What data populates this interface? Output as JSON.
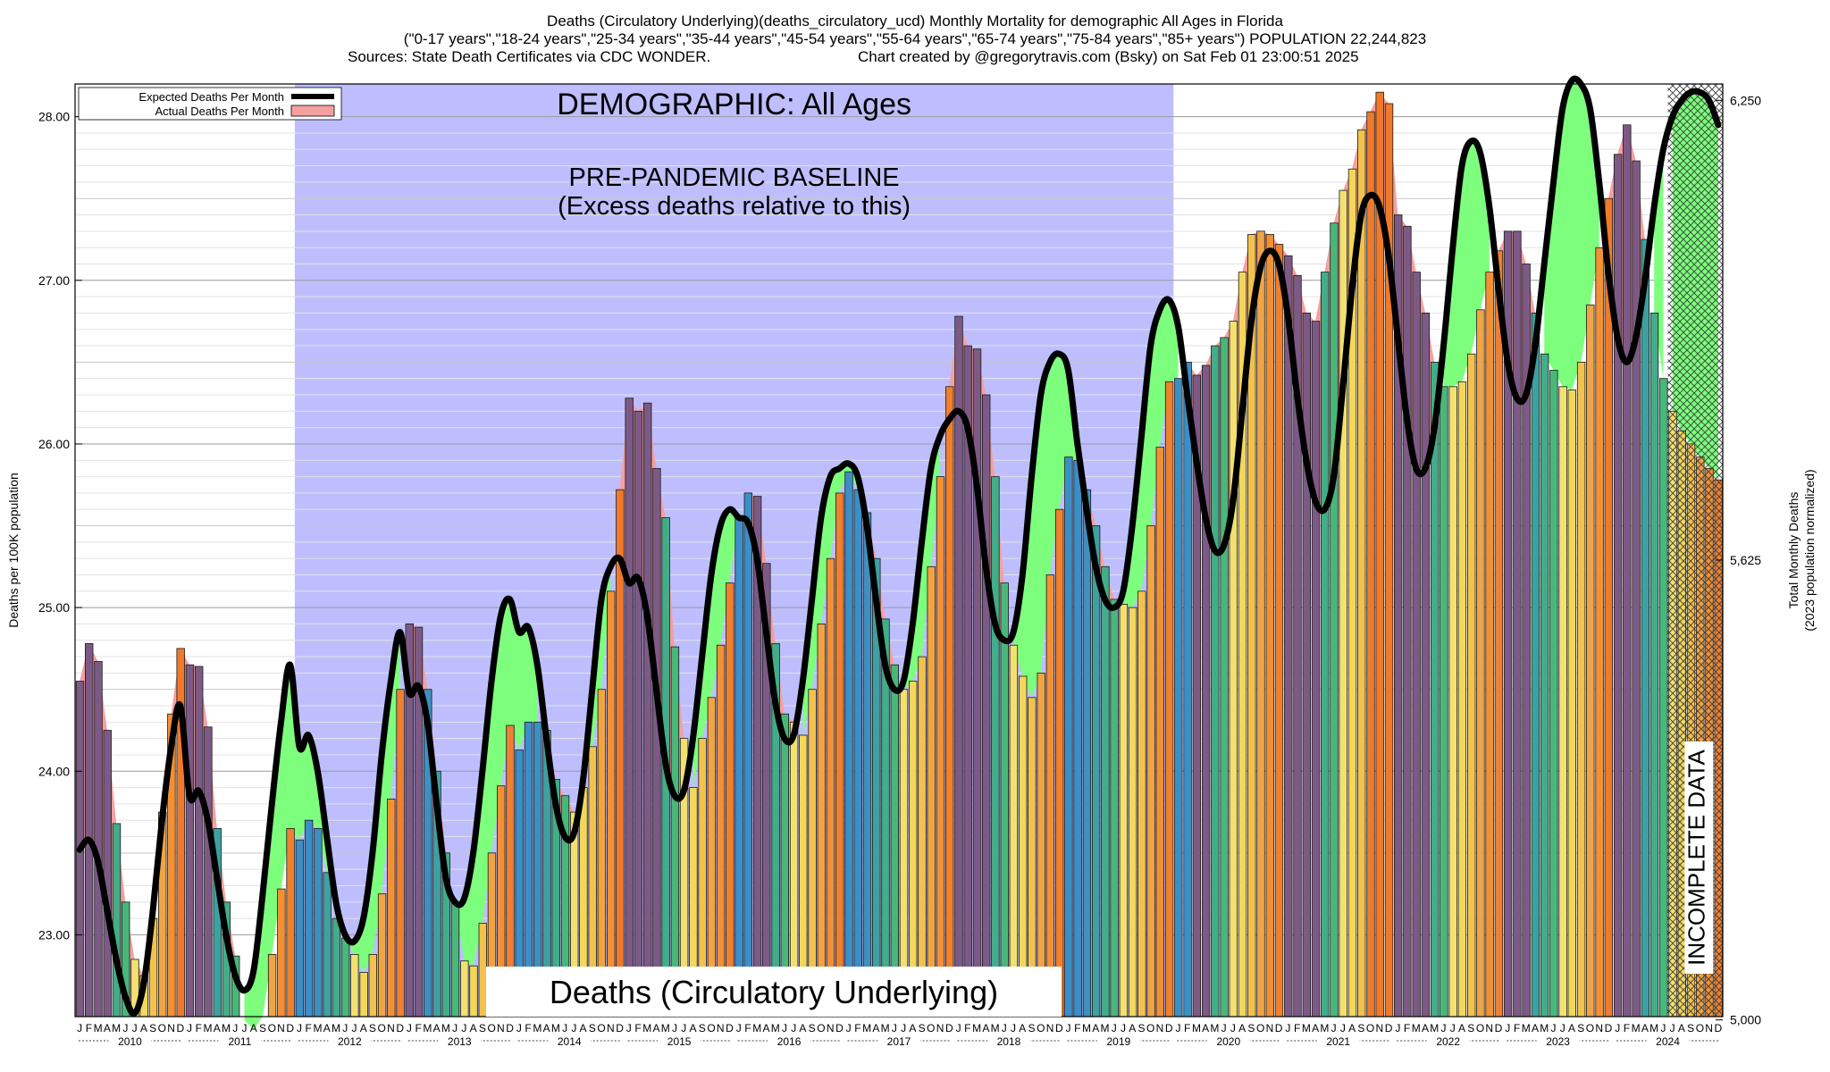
{
  "header": {
    "line1": "Deaths (Circulatory Underlying)(deaths_circulatory_ucd) Monthly Mortality for demographic All Ages in Florida",
    "line2": "(\"0-17 years\",\"18-24 years\",\"25-34 years\",\"35-44 years\",\"45-54 years\",\"55-64 years\",\"65-74 years\",\"75-84 years\",\"85+ years\") POPULATION 22,244,823",
    "line3_left": "Sources: State Death Certificates via CDC WONDER.",
    "line3_right": "Chart created by @gregorytravis.com (Bsky) on Sat Feb 01 23:00:51 2025"
  },
  "chart_data": {
    "type": "bar",
    "title": "DEMOGRAPHIC: All Ages",
    "baseline_label_1": "PRE-PANDEMIC BASELINE",
    "baseline_label_2": "(Excess deaths relative to this)",
    "bottom_label": "Deaths (Circulatory Underlying)",
    "incomplete_label": "INCOMPLETE DATA",
    "ylabel_left": "Deaths per 100K population",
    "ylabel_right_1": "Total Monthly Deaths",
    "ylabel_right_2": "(2023 population normalized)",
    "ylim": [
      22.5,
      28.2
    ],
    "y_ticks": [
      "23.00",
      "24.00",
      "25.00",
      "26.00",
      "27.00",
      "28.00"
    ],
    "y_right_ticks": [
      "5,000",
      "5,625",
      "6,250"
    ],
    "y_right_tick_values": [
      22.48,
      25.29,
      28.1
    ],
    "grid": true,
    "legend_position": "top-left",
    "legend": {
      "expected": "Expected Deaths Per Month",
      "actual": "Actual Deaths Per Month"
    },
    "month_letters": [
      "J",
      "F",
      "M",
      "A",
      "M",
      "J",
      "J",
      "A",
      "S",
      "O",
      "N",
      "D"
    ],
    "years": [
      "2010",
      "2011",
      "2012",
      "2013",
      "2014",
      "2015",
      "2016",
      "2017",
      "2018",
      "2019",
      "2020",
      "2021",
      "2022",
      "2023",
      "2024"
    ],
    "baseline_start": "2012-01",
    "baseline_end": "2019-12",
    "incomplete_start": "2024-07",
    "series": [
      {
        "name": "Actual Deaths Per Month",
        "values": [
          24.55,
          24.78,
          24.67,
          24.25,
          23.68,
          23.2,
          22.85,
          22.75,
          23.1,
          23.75,
          24.35,
          24.75,
          24.65,
          24.64,
          24.27,
          23.65,
          23.2,
          22.87,
          22.48,
          22.42,
          22.5,
          22.88,
          23.28,
          23.65,
          23.58,
          23.7,
          23.65,
          23.38,
          23.1,
          22.98,
          22.88,
          22.77,
          22.88,
          23.25,
          23.83,
          24.5,
          24.9,
          24.88,
          24.5,
          24.0,
          23.5,
          23.2,
          22.84,
          22.81,
          23.07,
          23.5,
          23.91,
          24.28,
          24.13,
          24.3,
          24.3,
          24.25,
          23.95,
          23.85,
          23.75,
          23.9,
          24.15,
          24.5,
          25.1,
          25.72,
          26.28,
          26.2,
          26.25,
          25.85,
          25.55,
          24.76,
          24.2,
          23.9,
          24.2,
          24.45,
          24.77,
          25.15,
          25.55,
          25.7,
          25.68,
          25.27,
          24.78,
          24.35,
          24.3,
          24.22,
          24.5,
          24.9,
          25.3,
          25.7,
          25.83,
          25.72,
          25.58,
          25.3,
          24.93,
          24.65,
          24.5,
          24.55,
          24.7,
          25.25,
          25.8,
          26.35,
          26.78,
          26.6,
          26.58,
          26.3,
          25.8,
          25.15,
          24.77,
          24.58,
          24.45,
          24.6,
          25.2,
          25.6,
          25.92,
          25.9,
          25.72,
          25.5,
          25.25,
          25.05,
          25.02,
          25.0,
          25.1,
          25.5,
          25.98,
          26.38,
          26.4,
          26.5,
          26.42,
          26.48,
          26.6,
          26.65,
          26.75,
          27.05,
          27.28,
          27.3,
          27.28,
          27.22,
          27.15,
          27.03,
          26.8,
          26.75,
          27.05,
          27.35,
          27.55,
          27.68,
          27.92,
          28.03,
          28.15,
          28.08,
          27.4,
          27.33,
          27.05,
          26.8,
          26.5,
          26.35,
          26.35,
          26.38,
          26.55,
          26.82,
          27.05,
          27.18,
          27.3,
          27.3,
          27.1,
          26.8,
          26.55,
          26.45,
          26.35,
          26.33,
          26.5,
          26.85,
          27.2,
          27.5,
          27.77,
          27.95,
          27.73,
          27.25,
          26.8,
          26.4,
          26.2,
          26.08,
          26.0,
          25.92,
          25.85,
          25.78
        ]
      },
      {
        "name": "Expected Deaths Per Month",
        "values": [
          23.52,
          23.58,
          23.45,
          23.15,
          22.85,
          22.62,
          22.52,
          22.7,
          23.15,
          23.7,
          24.15,
          24.4,
          23.85,
          23.88,
          23.7,
          23.35,
          23.0,
          22.75,
          22.66,
          22.78,
          23.25,
          23.8,
          24.3,
          24.65,
          24.15,
          24.22,
          24.0,
          23.6,
          23.2,
          23.0,
          22.96,
          23.1,
          23.5,
          24.1,
          24.55,
          24.85,
          24.48,
          24.52,
          24.3,
          23.8,
          23.35,
          23.2,
          23.22,
          23.5,
          24.0,
          24.55,
          24.95,
          25.05,
          24.85,
          24.88,
          24.65,
          24.2,
          23.8,
          23.6,
          23.62,
          23.95,
          24.5,
          25.05,
          25.25,
          25.3,
          25.15,
          25.18,
          24.95,
          24.5,
          24.05,
          23.85,
          23.88,
          24.2,
          24.7,
          25.2,
          25.5,
          25.6,
          25.55,
          25.52,
          25.3,
          24.85,
          24.42,
          24.2,
          24.22,
          24.55,
          25.05,
          25.55,
          25.8,
          25.85,
          25.88,
          25.8,
          25.5,
          25.05,
          24.65,
          24.5,
          24.55,
          24.9,
          25.4,
          25.85,
          26.05,
          26.15,
          26.2,
          26.1,
          25.75,
          25.25,
          24.9,
          24.8,
          24.85,
          25.2,
          25.8,
          26.3,
          26.5,
          26.55,
          26.45,
          26.0,
          25.6,
          25.25,
          25.05,
          25.0,
          25.1,
          25.5,
          26.05,
          26.6,
          26.82,
          26.88,
          26.72,
          26.3,
          25.9,
          25.55,
          25.35,
          25.38,
          25.65,
          26.2,
          26.75,
          27.08,
          27.18,
          27.1,
          26.78,
          26.3,
          25.9,
          25.65,
          25.6,
          25.8,
          26.35,
          26.95,
          27.4,
          27.52,
          27.45,
          27.15,
          26.65,
          26.15,
          25.85,
          25.85,
          26.1,
          26.6,
          27.2,
          27.7,
          27.85,
          27.78,
          27.45,
          26.95,
          26.5,
          26.28,
          26.3,
          26.6,
          27.1,
          27.6,
          28.05,
          28.22,
          28.2,
          28.05,
          27.6,
          27.05,
          26.65,
          26.5,
          26.65,
          27.0,
          27.45,
          27.8,
          28.0,
          28.1,
          28.15,
          28.15,
          28.1,
          27.95
        ]
      }
    ]
  }
}
